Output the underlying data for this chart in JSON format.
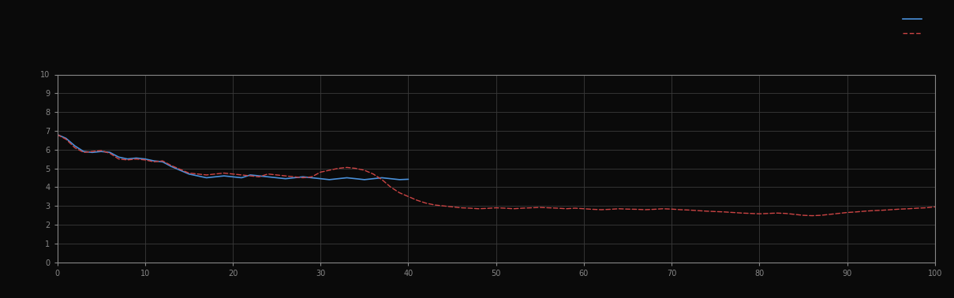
{
  "background_color": "#0a0a0a",
  "plot_bg_color": "#0a0a0a",
  "grid_color": "#3a3a3a",
  "axis_color": "#888888",
  "blue_line_color": "#4a90d9",
  "red_line_color": "#cc4444",
  "figsize": [
    12.09,
    3.78
  ],
  "dpi": 100,
  "xlim": [
    0,
    100
  ],
  "ylim": [
    0,
    10
  ],
  "blue_x": [
    0,
    1,
    2,
    3,
    4,
    5,
    6,
    7,
    8,
    9,
    10,
    11,
    12,
    13,
    14,
    15,
    16,
    17,
    18,
    19,
    20,
    21,
    22,
    23,
    24,
    25,
    26,
    27,
    28,
    29,
    30,
    31,
    32,
    33,
    34,
    35,
    36,
    37,
    38,
    39,
    40
  ],
  "blue_y": [
    6.8,
    6.6,
    6.2,
    5.9,
    5.85,
    5.9,
    5.85,
    5.6,
    5.5,
    5.55,
    5.5,
    5.4,
    5.35,
    5.1,
    4.9,
    4.7,
    4.6,
    4.5,
    4.55,
    4.6,
    4.55,
    4.5,
    4.65,
    4.6,
    4.55,
    4.5,
    4.45,
    4.5,
    4.55,
    4.5,
    4.45,
    4.4,
    4.45,
    4.5,
    4.45,
    4.4,
    4.45,
    4.5,
    4.45,
    4.4,
    4.42
  ],
  "red_x": [
    0,
    1,
    2,
    3,
    4,
    5,
    6,
    7,
    8,
    9,
    10,
    11,
    12,
    13,
    14,
    15,
    16,
    17,
    18,
    19,
    20,
    21,
    22,
    23,
    24,
    25,
    26,
    27,
    28,
    29,
    30,
    31,
    32,
    33,
    34,
    35,
    36,
    37,
    38,
    39,
    40,
    41,
    42,
    43,
    44,
    45,
    46,
    47,
    48,
    49,
    50,
    51,
    52,
    53,
    54,
    55,
    56,
    57,
    58,
    59,
    60,
    61,
    62,
    63,
    64,
    65,
    66,
    67,
    68,
    69,
    70,
    71,
    72,
    73,
    74,
    75,
    76,
    77,
    78,
    79,
    80,
    81,
    82,
    83,
    84,
    85,
    86,
    87,
    88,
    89,
    90,
    91,
    92,
    93,
    94,
    95,
    96,
    97,
    98,
    99,
    100
  ],
  "red_y": [
    6.8,
    6.55,
    6.1,
    5.85,
    5.9,
    5.95,
    5.8,
    5.5,
    5.45,
    5.5,
    5.45,
    5.35,
    5.4,
    5.15,
    4.95,
    4.75,
    4.7,
    4.65,
    4.7,
    4.75,
    4.7,
    4.65,
    4.6,
    4.55,
    4.7,
    4.65,
    4.6,
    4.55,
    4.5,
    4.55,
    4.8,
    4.9,
    5.0,
    5.05,
    5.0,
    4.9,
    4.7,
    4.4,
    4.0,
    3.7,
    3.5,
    3.3,
    3.15,
    3.05,
    3.0,
    2.95,
    2.9,
    2.88,
    2.85,
    2.87,
    2.9,
    2.88,
    2.85,
    2.88,
    2.9,
    2.92,
    2.9,
    2.88,
    2.85,
    2.88,
    2.85,
    2.82,
    2.8,
    2.82,
    2.85,
    2.83,
    2.82,
    2.8,
    2.82,
    2.85,
    2.83,
    2.8,
    2.78,
    2.75,
    2.72,
    2.7,
    2.68,
    2.65,
    2.62,
    2.6,
    2.58,
    2.6,
    2.62,
    2.6,
    2.55,
    2.5,
    2.48,
    2.5,
    2.55,
    2.6,
    2.65,
    2.68,
    2.72,
    2.75,
    2.77,
    2.8,
    2.83,
    2.85,
    2.88,
    2.9,
    2.95
  ],
  "legend_blue_label": "",
  "legend_red_label": "",
  "xticks": [
    0,
    10,
    20,
    30,
    40,
    50,
    60,
    70,
    80,
    90,
    100
  ],
  "yticks": [
    0,
    1,
    2,
    3,
    4,
    5,
    6,
    7,
    8,
    9,
    10
  ]
}
